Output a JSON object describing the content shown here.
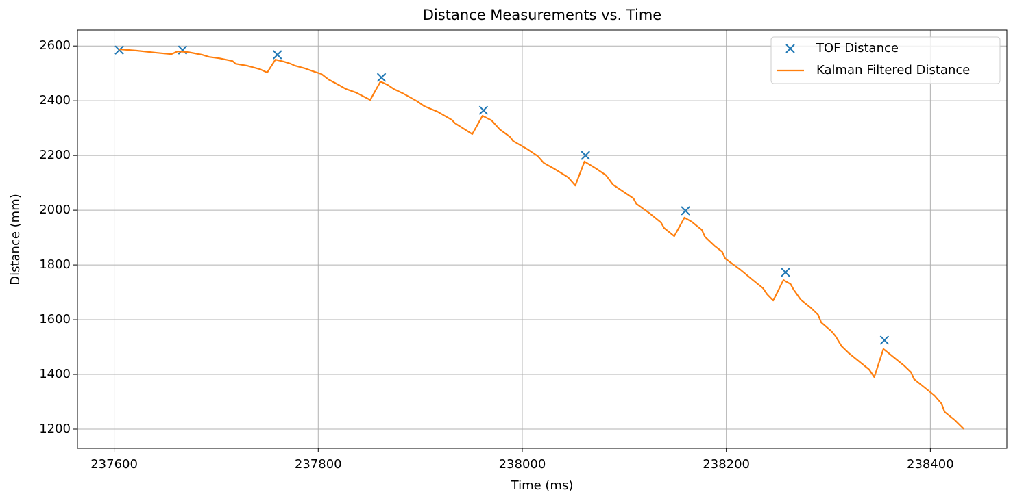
{
  "chart_data": {
    "type": "line",
    "title": "Distance Measurements vs. Time",
    "x_label": "Time (ms)",
    "y_label": "Distance (mm)",
    "xlim": [
      237564,
      238475
    ],
    "ylim": [
      1130,
      2658
    ],
    "xticks": [
      237600,
      237800,
      238000,
      238200,
      238400
    ],
    "yticks": [
      1200,
      1400,
      1600,
      1800,
      2000,
      2200,
      2400,
      2600
    ],
    "grid": true,
    "legend": "upper right",
    "series": [
      {
        "name": "TOF Distance",
        "type": "scatter",
        "color": "#1f77b4",
        "x": [
          237605,
          237667,
          237760,
          237862,
          237962,
          238062,
          238160,
          238258,
          238355
        ],
        "values": [
          2585,
          2585,
          2568,
          2485,
          2365,
          2200,
          1998,
          1773,
          1525
        ]
      },
      {
        "name": "Kalman Filtered Distance",
        "type": "line",
        "color": "#ff7f0e",
        "x": [
          237605,
          237622,
          237642,
          237656,
          237662,
          237672,
          237686,
          237693,
          237703,
          237716,
          237719,
          237730,
          237743,
          237750,
          237758,
          237766,
          237773,
          237777,
          237787,
          237797,
          237803,
          237810,
          237820,
          237827,
          237837,
          237851,
          237861,
          237868,
          237874,
          237884,
          237897,
          237904,
          237917,
          237931,
          237934,
          237951,
          237961,
          237970,
          237978,
          237988,
          237991,
          238005,
          238015,
          238021,
          238032,
          238045,
          238052,
          238061,
          238072,
          238082,
          238089,
          238099,
          238109,
          238112,
          238125,
          238136,
          238139,
          238149,
          238159,
          238166,
          238176,
          238179,
          238189,
          238196,
          238199,
          238213,
          238226,
          238236,
          238240,
          238246,
          238256,
          238263,
          238266,
          238273,
          238283,
          238290,
          238293,
          238303,
          238307,
          238313,
          238320,
          238330,
          238340,
          238345,
          238354,
          238364,
          238374,
          238381,
          238384,
          238394,
          238404,
          238411,
          238414,
          238424,
          238433
        ],
        "values": [
          2588,
          2583,
          2575,
          2570,
          2580,
          2578,
          2568,
          2560,
          2555,
          2545,
          2535,
          2528,
          2515,
          2503,
          2550,
          2543,
          2535,
          2528,
          2518,
          2505,
          2498,
          2478,
          2458,
          2443,
          2430,
          2403,
          2470,
          2458,
          2443,
          2425,
          2398,
          2380,
          2360,
          2330,
          2318,
          2278,
          2345,
          2328,
          2295,
          2268,
          2253,
          2223,
          2198,
          2173,
          2150,
          2120,
          2090,
          2178,
          2153,
          2128,
          2093,
          2068,
          2043,
          2023,
          1988,
          1955,
          1935,
          1905,
          1973,
          1958,
          1928,
          1903,
          1868,
          1848,
          1823,
          1785,
          1745,
          1715,
          1693,
          1670,
          1745,
          1730,
          1710,
          1673,
          1643,
          1618,
          1590,
          1558,
          1540,
          1503,
          1478,
          1448,
          1418,
          1390,
          1493,
          1463,
          1433,
          1408,
          1383,
          1353,
          1323,
          1293,
          1263,
          1233,
          1200
        ]
      }
    ]
  }
}
